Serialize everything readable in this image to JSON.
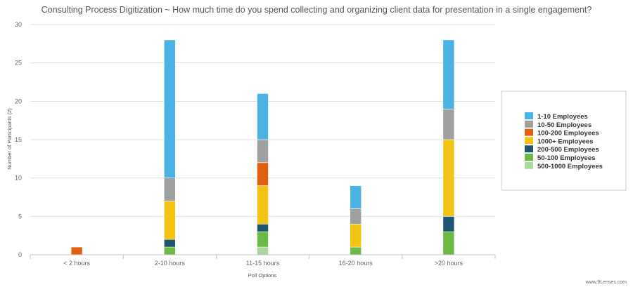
{
  "chart_data": {
    "type": "bar",
    "stacked": true,
    "title": "Consulting Process Digitization ~ How much time do you spend collecting and organizing client data for presentation in a single engagement?",
    "xlabel": "Poll Options",
    "ylabel": "Number of Participants (#)",
    "ylim": [
      0,
      30
    ],
    "yticks": [
      0,
      5,
      10,
      15,
      20,
      25,
      30
    ],
    "grid": true,
    "legend_position": "right",
    "categories": [
      "< 2 hours",
      "2-10 hours",
      "11-15 hours",
      "16-20 hours",
      ">20 hours"
    ],
    "series": [
      {
        "name": "500-1000 Employees",
        "color": "#a8d89a",
        "values": [
          0,
          0,
          1,
          0,
          0
        ]
      },
      {
        "name": "50-100 Employees",
        "color": "#6aba45",
        "values": [
          0,
          1,
          2,
          1,
          3
        ]
      },
      {
        "name": "200-500 Employees",
        "color": "#1e5670",
        "values": [
          0,
          1,
          1,
          0,
          2
        ]
      },
      {
        "name": "1000+ Employees",
        "color": "#f3c313",
        "values": [
          0,
          5,
          5,
          3,
          10
        ]
      },
      {
        "name": "100-200 Employees",
        "color": "#e0600f",
        "values": [
          1,
          0,
          3,
          0,
          0
        ]
      },
      {
        "name": "10-50 Employees",
        "color": "#a0a0a0",
        "values": [
          0,
          3,
          3,
          2,
          4
        ]
      },
      {
        "name": "1-10 Employees",
        "color": "#4ab3e3",
        "values": [
          0,
          18,
          6,
          3,
          9
        ]
      }
    ],
    "legend_order": [
      "1-10 Employees",
      "10-50 Employees",
      "100-200 Employees",
      "1000+ Employees",
      "200-500 Employees",
      "50-100 Employees",
      "500-1000 Employees"
    ]
  },
  "watermark": "www.9Lenses.com"
}
